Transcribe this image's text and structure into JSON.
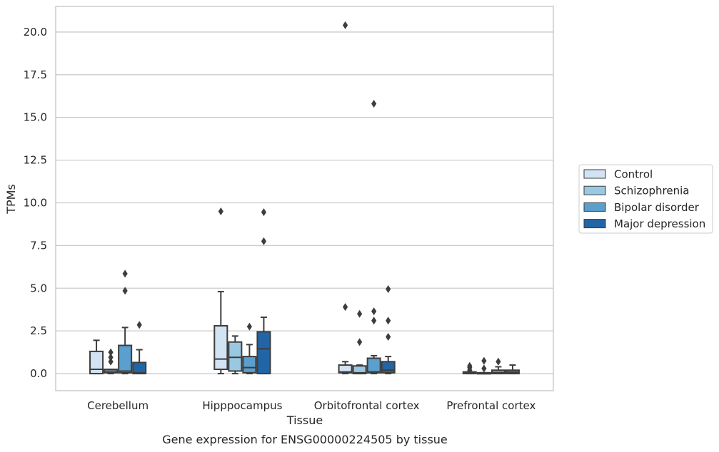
{
  "chart_data": {
    "type": "box",
    "title": "",
    "caption": "Gene expression for ENSG00000224505 by tissue",
    "xlabel": "Tissue",
    "ylabel": "TPMs",
    "ylim": [
      -1.0,
      21.5
    ],
    "yticks": [
      0.0,
      2.5,
      5.0,
      7.5,
      10.0,
      12.5,
      15.0,
      17.5,
      20.0
    ],
    "ytick_labels": [
      "0.0",
      "2.5",
      "5.0",
      "7.5",
      "10.0",
      "12.5",
      "15.0",
      "17.5",
      "20.0"
    ],
    "grid": "horizontal",
    "legend_position": "right",
    "categories": [
      "Cerebellum",
      "Hipppocampus",
      "Orbitofrontal cortex",
      "Prefrontal cortex"
    ],
    "series": [
      {
        "name": "Control",
        "color": "#d2e3f3",
        "boxes": [
          {
            "whislo": 0.0,
            "q1": 0.0,
            "med": 0.25,
            "q3": 1.3,
            "whishi": 1.95,
            "fliers": []
          },
          {
            "whislo": 0.0,
            "q1": 0.25,
            "med": 0.85,
            "q3": 2.8,
            "whishi": 4.8,
            "fliers": [
              9.5
            ]
          },
          {
            "whislo": 0.0,
            "q1": 0.05,
            "med": 0.1,
            "q3": 0.5,
            "whishi": 0.7,
            "fliers": [
              3.9,
              20.4
            ]
          },
          {
            "whislo": 0.0,
            "q1": 0.0,
            "med": 0.05,
            "q3": 0.1,
            "whishi": 0.1,
            "fliers": [
              0.2,
              0.35,
              0.45
            ]
          }
        ]
      },
      {
        "name": "Schizophrenia",
        "color": "#9ac8e1",
        "boxes": [
          {
            "whislo": 0.0,
            "q1": 0.05,
            "med": 0.15,
            "q3": 0.25,
            "whishi": 0.25,
            "fliers": [
              0.7,
              0.95,
              1.25
            ]
          },
          {
            "whislo": 0.0,
            "q1": 0.15,
            "med": 0.95,
            "q3": 1.85,
            "whishi": 2.2,
            "fliers": []
          },
          {
            "whislo": 0.0,
            "q1": 0.0,
            "med": 0.05,
            "q3": 0.45,
            "whishi": 0.5,
            "fliers": [
              1.85,
              3.5
            ]
          },
          {
            "whislo": 0.0,
            "q1": 0.0,
            "med": 0.0,
            "q3": 0.05,
            "whishi": 0.05,
            "fliers": [
              0.3,
              0.75
            ]
          }
        ]
      },
      {
        "name": "Bipolar disorder",
        "color": "#5a9fcd",
        "boxes": [
          {
            "whislo": 0.0,
            "q1": 0.05,
            "med": 0.15,
            "q3": 1.65,
            "whishi": 2.7,
            "fliers": [
              4.85,
              5.85
            ]
          },
          {
            "whislo": 0.0,
            "q1": 0.05,
            "med": 0.35,
            "q3": 1.0,
            "whishi": 1.7,
            "fliers": [
              2.75
            ]
          },
          {
            "whislo": 0.0,
            "q1": 0.05,
            "med": 0.1,
            "q3": 0.9,
            "whishi": 1.05,
            "fliers": [
              3.1,
              3.65,
              15.8
            ]
          },
          {
            "whislo": 0.0,
            "q1": 0.0,
            "med": 0.05,
            "q3": 0.2,
            "whishi": 0.4,
            "fliers": [
              0.7
            ]
          }
        ]
      },
      {
        "name": "Major depression",
        "color": "#2265a6",
        "boxes": [
          {
            "whislo": 0.0,
            "q1": 0.0,
            "med": 0.05,
            "q3": 0.65,
            "whishi": 1.4,
            "fliers": [
              2.85
            ]
          },
          {
            "whislo": 0.0,
            "q1": 0.0,
            "med": 1.45,
            "q3": 2.45,
            "whishi": 3.3,
            "fliers": [
              7.75,
              9.45
            ]
          },
          {
            "whislo": 0.0,
            "q1": 0.05,
            "med": 0.2,
            "q3": 0.7,
            "whishi": 1.0,
            "fliers": [
              2.15,
              3.1,
              4.95
            ]
          },
          {
            "whislo": 0.0,
            "q1": 0.0,
            "med": 0.05,
            "q3": 0.2,
            "whishi": 0.5,
            "fliers": []
          }
        ]
      }
    ]
  }
}
